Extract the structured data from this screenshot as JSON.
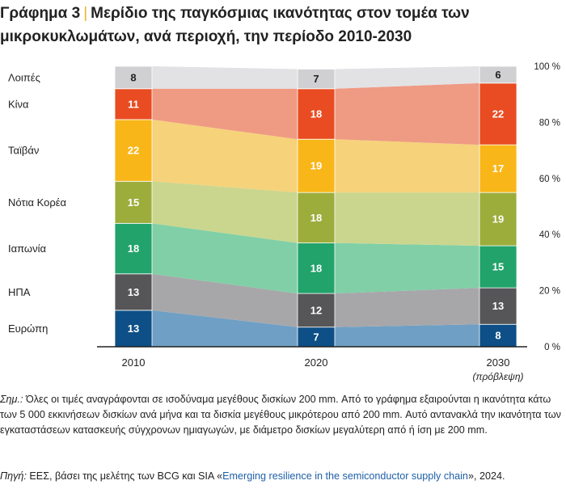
{
  "title": {
    "label": "Γράφημα 3",
    "separator": "|",
    "text_line1": "Μερίδιο της παγκόσμιας ικανότητας στον τομέα των",
    "text_line2": "μικροκυκλωμάτων, ανά περιοχή, την περίοδο 2010-2030"
  },
  "chart_data": {
    "type": "bar",
    "stacked": true,
    "categories": [
      "2010",
      "2020",
      "2030"
    ],
    "category_sublabels": [
      "",
      "",
      "(πρόβλεψη)"
    ],
    "y_axis": {
      "ticks": [
        "0 %",
        "20 %",
        "40 %",
        "60 %",
        "80 %",
        "100 %"
      ],
      "range": [
        0,
        100
      ],
      "position": "right"
    },
    "legend_position": "left",
    "series": [
      {
        "name": "Ευρώπη",
        "values": [
          13,
          7,
          8
        ],
        "color": "#0d4f86",
        "band_color": "#6f9fc4"
      },
      {
        "name": "ΗΠΑ",
        "values": [
          13,
          12,
          13
        ],
        "color": "#565659",
        "band_color": "#a7a7aa"
      },
      {
        "name": "Ιαπωνία",
        "values": [
          18,
          18,
          15
        ],
        "color": "#22a36b",
        "band_color": "#80cfa7"
      },
      {
        "name": "Νότια Κορέα",
        "values": [
          15,
          18,
          19
        ],
        "color": "#9cad3c",
        "band_color": "#cad68e"
      },
      {
        "name": "Ταϊβάν",
        "values": [
          22,
          19,
          17
        ],
        "color": "#f8b619",
        "band_color": "#f6d27a"
      },
      {
        "name": "Κίνα",
        "values": [
          11,
          18,
          22
        ],
        "color": "#e94c22",
        "band_color": "#ef9a83"
      },
      {
        "name": "Λοιπές",
        "values": [
          8,
          7,
          6
        ],
        "color": "#d0d0d3",
        "band_color": "#e2e2e4"
      }
    ]
  },
  "notes": {
    "label": "Σημ.:",
    "text": "Όλες οι τιμές αναγράφονται σε ισοδύναμα μεγέθους δισκίων 200 mm. Από το γράφημα εξαιρούνται η ικανότητα κάτω των 5 000 εκκινήσεων δισκίων ανά μήνα και τα δισκία μεγέθους μικρότερου από 200 mm. Αυτό αντανακλά την ικανότητα των εγκαταστάσεων κατασκευής σύγχρονων ημιαγωγών, με διάμετρο δισκίων μεγαλύτερη από ή ίση με 200 mm."
  },
  "source": {
    "label": "Πηγή:",
    "text": "ΕΕΣ, βάσει της μελέτης των BCG και SIA «",
    "link": "Emerging resilience in the semiconductor supply chain",
    "tail": "», 2024."
  }
}
